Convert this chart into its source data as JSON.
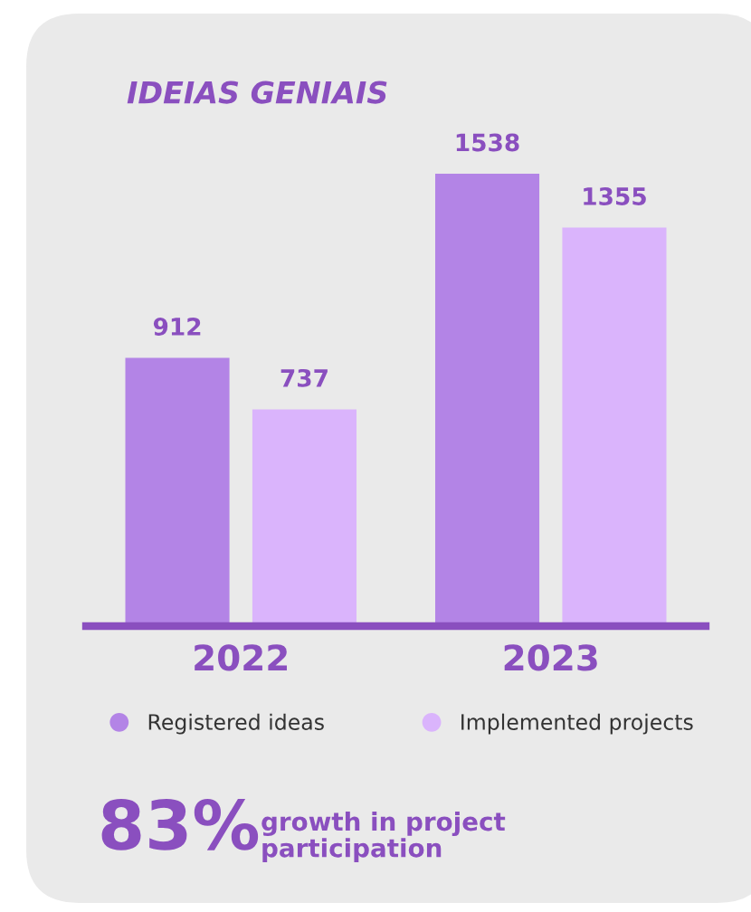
{
  "chart_data": {
    "type": "bar",
    "title": "IDEIAS GENIAIS",
    "categories": [
      "2022",
      "2023"
    ],
    "series": [
      {
        "name": "Registered ideas",
        "color": "#b384e6",
        "values": [
          912,
          1538
        ]
      },
      {
        "name": "Implemented projects",
        "color": "#dab4fc",
        "values": [
          737,
          1355
        ]
      }
    ],
    "data_labels": true,
    "tick_labels": "x",
    "legend": "bottom",
    "grid": false,
    "annotations": [
      "83%",
      "growth in project\nparticipation"
    ]
  }
}
